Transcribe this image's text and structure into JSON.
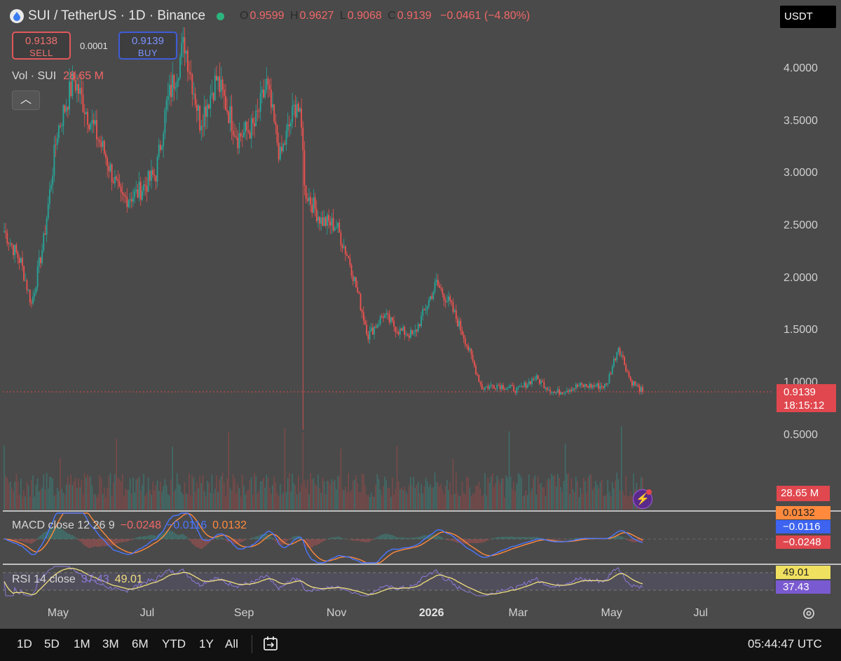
{
  "header": {
    "symbol": "SUI / TetherUS · 1D · Binance",
    "ohlc": {
      "o_label": "O",
      "o": "0.9599",
      "h_label": "H",
      "h": "0.9627",
      "l_label": "L",
      "l": "0.9068",
      "c_label": "C",
      "c": "0.9139",
      "change": "−0.0461 (−4.80%)"
    }
  },
  "trade": {
    "sell_price": "0.9138",
    "sell_label": "SELL",
    "spread": "0.0001",
    "buy_price": "0.9139",
    "buy_label": "BUY"
  },
  "volume_legend": {
    "label": "Vol · SUI",
    "value": "28.65 M"
  },
  "currency": "USDT",
  "y_axis_labels": [
    "4.0000",
    "3.5000",
    "3.0000",
    "2.5000",
    "2.0000",
    "1.5000",
    "1.0000",
    "0.5000"
  ],
  "last_price_tag": {
    "price": "0.9139",
    "countdown": "18:15:12"
  },
  "volume_tag": "28.65 M",
  "macd": {
    "legend": "MACD close 12 26 9",
    "v1": "−0.0248",
    "v2": "−0.0116",
    "v3": "0.0132",
    "tags": [
      "0.0132",
      "−0.0116",
      "−0.0248"
    ]
  },
  "rsi": {
    "legend": "RSI 14 close",
    "v1": "37.43",
    "v2": "49.01",
    "tags": [
      "49.01",
      "37.43"
    ]
  },
  "x_axis_labels": [
    "May",
    "Jul",
    "Sep",
    "Nov",
    "2026",
    "Mar",
    "May",
    "Jul"
  ],
  "ranges": [
    "1D",
    "5D",
    "1M",
    "3M",
    "6M",
    "YTD",
    "1Y",
    "All"
  ],
  "clock": "05:44:47 UTC",
  "colors": {
    "up": "#26a69a",
    "down": "#ef5350",
    "macd": "#4a76ff",
    "signal": "#ff8a3d",
    "rsi": "#8a7ad8",
    "rsi_ma": "#f0e080"
  },
  "chart_data": {
    "type": "candlestick",
    "title": "SUI / TetherUS · 1D · Binance",
    "ylim": [
      0.25,
      4.25
    ],
    "key_points": [
      {
        "date": "2025-03-27",
        "price": 2.45
      },
      {
        "date": "2025-04-07",
        "price": 2.15
      },
      {
        "date": "2025-04-14",
        "price": 1.75
      },
      {
        "date": "2025-04-22",
        "price": 2.35
      },
      {
        "date": "2025-05-01",
        "price": 3.4
      },
      {
        "date": "2025-05-12",
        "price": 3.9
      },
      {
        "date": "2025-05-20",
        "price": 3.6
      },
      {
        "date": "2025-06-01",
        "price": 3.2
      },
      {
        "date": "2025-06-12",
        "price": 2.75
      },
      {
        "date": "2025-06-22",
        "price": 2.8
      },
      {
        "date": "2025-07-05",
        "price": 3.0
      },
      {
        "date": "2025-07-12",
        "price": 3.65
      },
      {
        "date": "2025-07-24",
        "price": 4.25
      },
      {
        "date": "2025-08-03",
        "price": 3.5
      },
      {
        "date": "2025-08-14",
        "price": 3.9
      },
      {
        "date": "2025-08-28",
        "price": 3.35
      },
      {
        "date": "2025-09-08",
        "price": 3.45
      },
      {
        "date": "2025-09-16",
        "price": 3.85
      },
      {
        "date": "2025-09-25",
        "price": 3.15
      },
      {
        "date": "2025-10-06",
        "price": 3.7
      },
      {
        "date": "2025-10-10",
        "price": 3.3
      },
      {
        "date": "2025-10-11",
        "price": 2.85
      },
      {
        "date": "2025-10-22",
        "price": 2.55
      },
      {
        "date": "2025-11-01",
        "price": 2.5
      },
      {
        "date": "2025-11-10",
        "price": 2.15
      },
      {
        "date": "2025-11-22",
        "price": 1.45
      },
      {
        "date": "2025-12-02",
        "price": 1.65
      },
      {
        "date": "2025-12-12",
        "price": 1.5
      },
      {
        "date": "2025-12-22",
        "price": 1.45
      },
      {
        "date": "2026-01-06",
        "price": 1.95
      },
      {
        "date": "2026-01-15",
        "price": 1.75
      },
      {
        "date": "2026-01-24",
        "price": 1.45
      },
      {
        "date": "2026-02-05",
        "price": 0.95
      },
      {
        "date": "2026-02-15",
        "price": 0.98
      },
      {
        "date": "2026-03-01",
        "price": 0.93
      },
      {
        "date": "2026-03-12",
        "price": 1.05
      },
      {
        "date": "2026-03-25",
        "price": 0.9
      },
      {
        "date": "2026-04-10",
        "price": 0.97
      },
      {
        "date": "2026-04-28",
        "price": 0.97
      },
      {
        "date": "2026-05-06",
        "price": 1.35
      },
      {
        "date": "2026-05-14",
        "price": 1.02
      },
      {
        "date": "2026-05-22",
        "price": 0.9139
      }
    ],
    "notable_wicks": [
      {
        "date": "2025-10-10",
        "low": 0.55
      }
    ],
    "last_price": 0.9139,
    "volume_last": "28.65 M",
    "macd_values": {
      "macd": -0.0116,
      "signal": -0.0248,
      "histogram": 0.0132
    },
    "rsi_values": {
      "rsi": 37.43,
      "rsi_ma": 49.01
    }
  }
}
